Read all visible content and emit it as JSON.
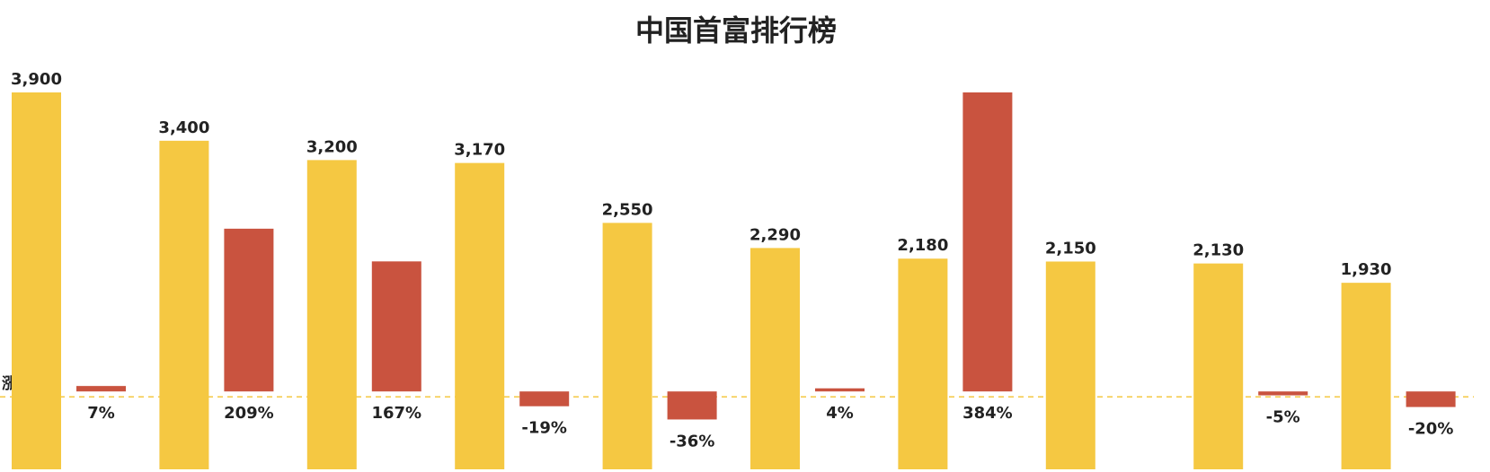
{
  "chart_data": {
    "type": "bar",
    "title": "中国首富排行榜",
    "categories": [
      null,
      null,
      null,
      null,
      null,
      null,
      null,
      null,
      null,
      null
    ],
    "y2_label": "涨幅",
    "series": [
      {
        "color": "#f5c842",
        "values": [
          3900,
          3400,
          3200,
          3170,
          2550,
          2290,
          2180,
          2150,
          2130,
          1930
        ],
        "value_labels": [
          "3,900",
          "3,400",
          "3,200",
          "3,170",
          "2,550",
          "2,290",
          "2,180",
          "2,150",
          "2,130",
          "1,930"
        ]
      },
      {
        "color": "#c9533f",
        "axis": "y2",
        "values": [
          7,
          209,
          167,
          -19,
          -36,
          4,
          384,
          null,
          -5,
          -20
        ],
        "value_labels": [
          "7%",
          "209%",
          "167%",
          "-19%",
          "-36%",
          "4%",
          "384%",
          null,
          "-5%",
          "-20%"
        ]
      }
    ],
    "ylim": [
      0,
      3900
    ],
    "y2lim": [
      -100,
      384
    ],
    "zero_line_color": "#f5c842"
  }
}
